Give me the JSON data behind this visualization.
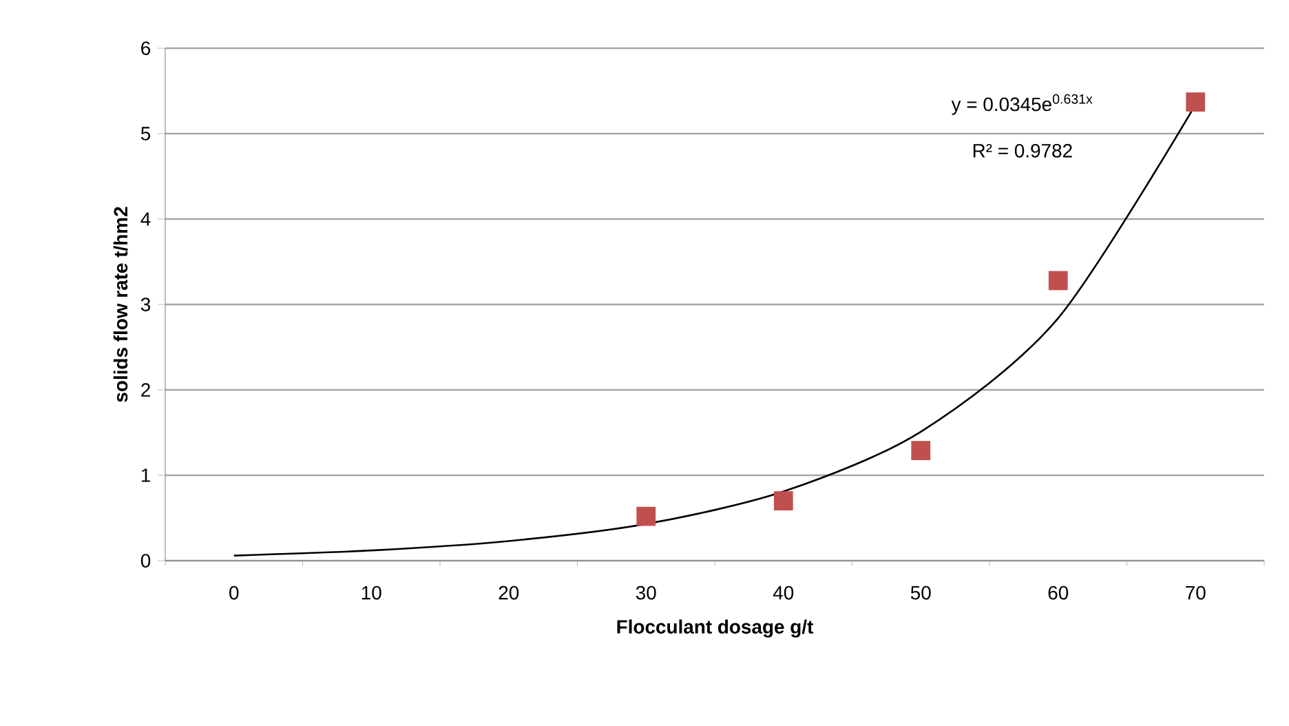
{
  "chart_data": {
    "type": "scatter",
    "xlabel": "Flocculant  dosage g/t",
    "ylabel": "solids flow rate t/hm2",
    "categories": [
      "0",
      "10",
      "20",
      "30",
      "40",
      "50",
      "60",
      "70"
    ],
    "series": [
      {
        "color": "#c0504d",
        "marker": "square",
        "values": [
          null,
          null,
          null,
          0.52,
          0.7,
          1.29,
          3.28,
          5.37
        ]
      },
      {
        "type": "line",
        "color": "#000000",
        "marker": "none",
        "line_style": "solid",
        "values": [
          0.06,
          0.12,
          0.23,
          0.43,
          0.81,
          1.51,
          2.84,
          5.34
        ]
      }
    ],
    "ylim": [
      0,
      6
    ],
    "yticks": [
      0,
      1,
      2,
      3,
      4,
      5,
      6
    ],
    "grid": "y",
    "annotations": [
      "y = 0.0345e$^{0.631x}$",
      "R² = 0.9782"
    ]
  }
}
